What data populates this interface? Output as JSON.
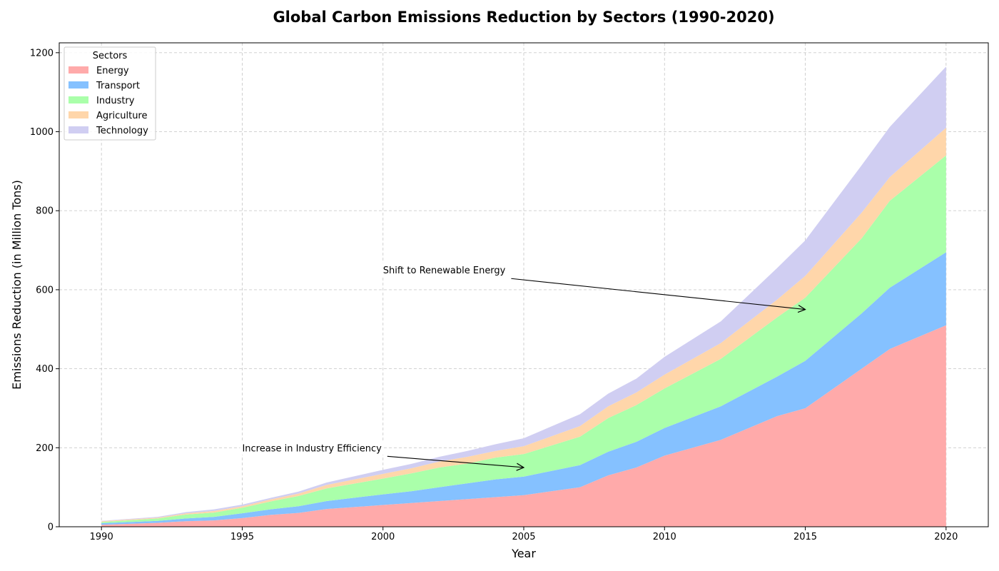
{
  "chart_data": {
    "type": "area",
    "stacked": true,
    "title": "Global Carbon Emissions Reduction by Sectors (1990-2020)",
    "xlabel": "Year",
    "ylabel": "Emissions Reduction (in Million Tons)",
    "xlim": [
      1988.5,
      2021.5
    ],
    "ylim": [
      0,
      1225
    ],
    "x_ticks": [
      1990,
      1995,
      2000,
      2005,
      2010,
      2015,
      2020
    ],
    "y_ticks": [
      0,
      200,
      400,
      600,
      800,
      1000,
      1200
    ],
    "grid": true,
    "legend": {
      "title": "Sectors",
      "placement": "top-left"
    },
    "x": [
      1990,
      1992,
      1993,
      1994,
      1995,
      1996,
      1997,
      1998,
      2000,
      2001,
      2002,
      2003,
      2004,
      2005,
      2007,
      2008,
      2009,
      2010,
      2012,
      2014,
      2015,
      2017,
      2018,
      2020
    ],
    "series": [
      {
        "name": "Energy",
        "color": "#ffaaaa",
        "values": [
          5,
          10,
          14,
          16,
          22,
          30,
          35,
          45,
          55,
          60,
          65,
          70,
          75,
          80,
          100,
          130,
          150,
          180,
          220,
          280,
          300,
          400,
          450,
          510
        ]
      },
      {
        "name": "Transport",
        "color": "#85c1ff",
        "values": [
          4,
          5,
          7,
          9,
          12,
          14,
          17,
          20,
          27,
          30,
          35,
          40,
          45,
          47,
          56,
          60,
          65,
          70,
          85,
          100,
          120,
          140,
          155,
          185
        ]
      },
      {
        "name": "Industry",
        "color": "#aaffaa",
        "values": [
          3,
          6,
          10,
          11,
          14,
          20,
          26,
          32,
          40,
          45,
          50,
          50,
          55,
          57,
          72,
          85,
          93,
          100,
          120,
          150,
          160,
          190,
          220,
          245
        ]
      },
      {
        "name": "Agriculture",
        "color": "#ffd6aa",
        "values": [
          2,
          2,
          3,
          4,
          4,
          5,
          6,
          9,
          12,
          13,
          15,
          17,
          17,
          20,
          27,
          30,
          32,
          35,
          40,
          45,
          55,
          65,
          60,
          70
        ]
      },
      {
        "name": "Technology",
        "color": "#d0cef2",
        "values": [
          1,
          2,
          3,
          4,
          4,
          4,
          5,
          6,
          10,
          11,
          12,
          15,
          17,
          20,
          30,
          32,
          35,
          45,
          55,
          80,
          90,
          120,
          127,
          155
        ]
      }
    ],
    "annotations": [
      {
        "text": "Shift to Renewable Energy",
        "point": [
          2015,
          550
        ],
        "text_at": [
          2000,
          650
        ]
      },
      {
        "text": "Increase in Industry Efficiency",
        "point": [
          2005,
          150
        ],
        "text_at": [
          1995,
          200
        ]
      }
    ]
  }
}
